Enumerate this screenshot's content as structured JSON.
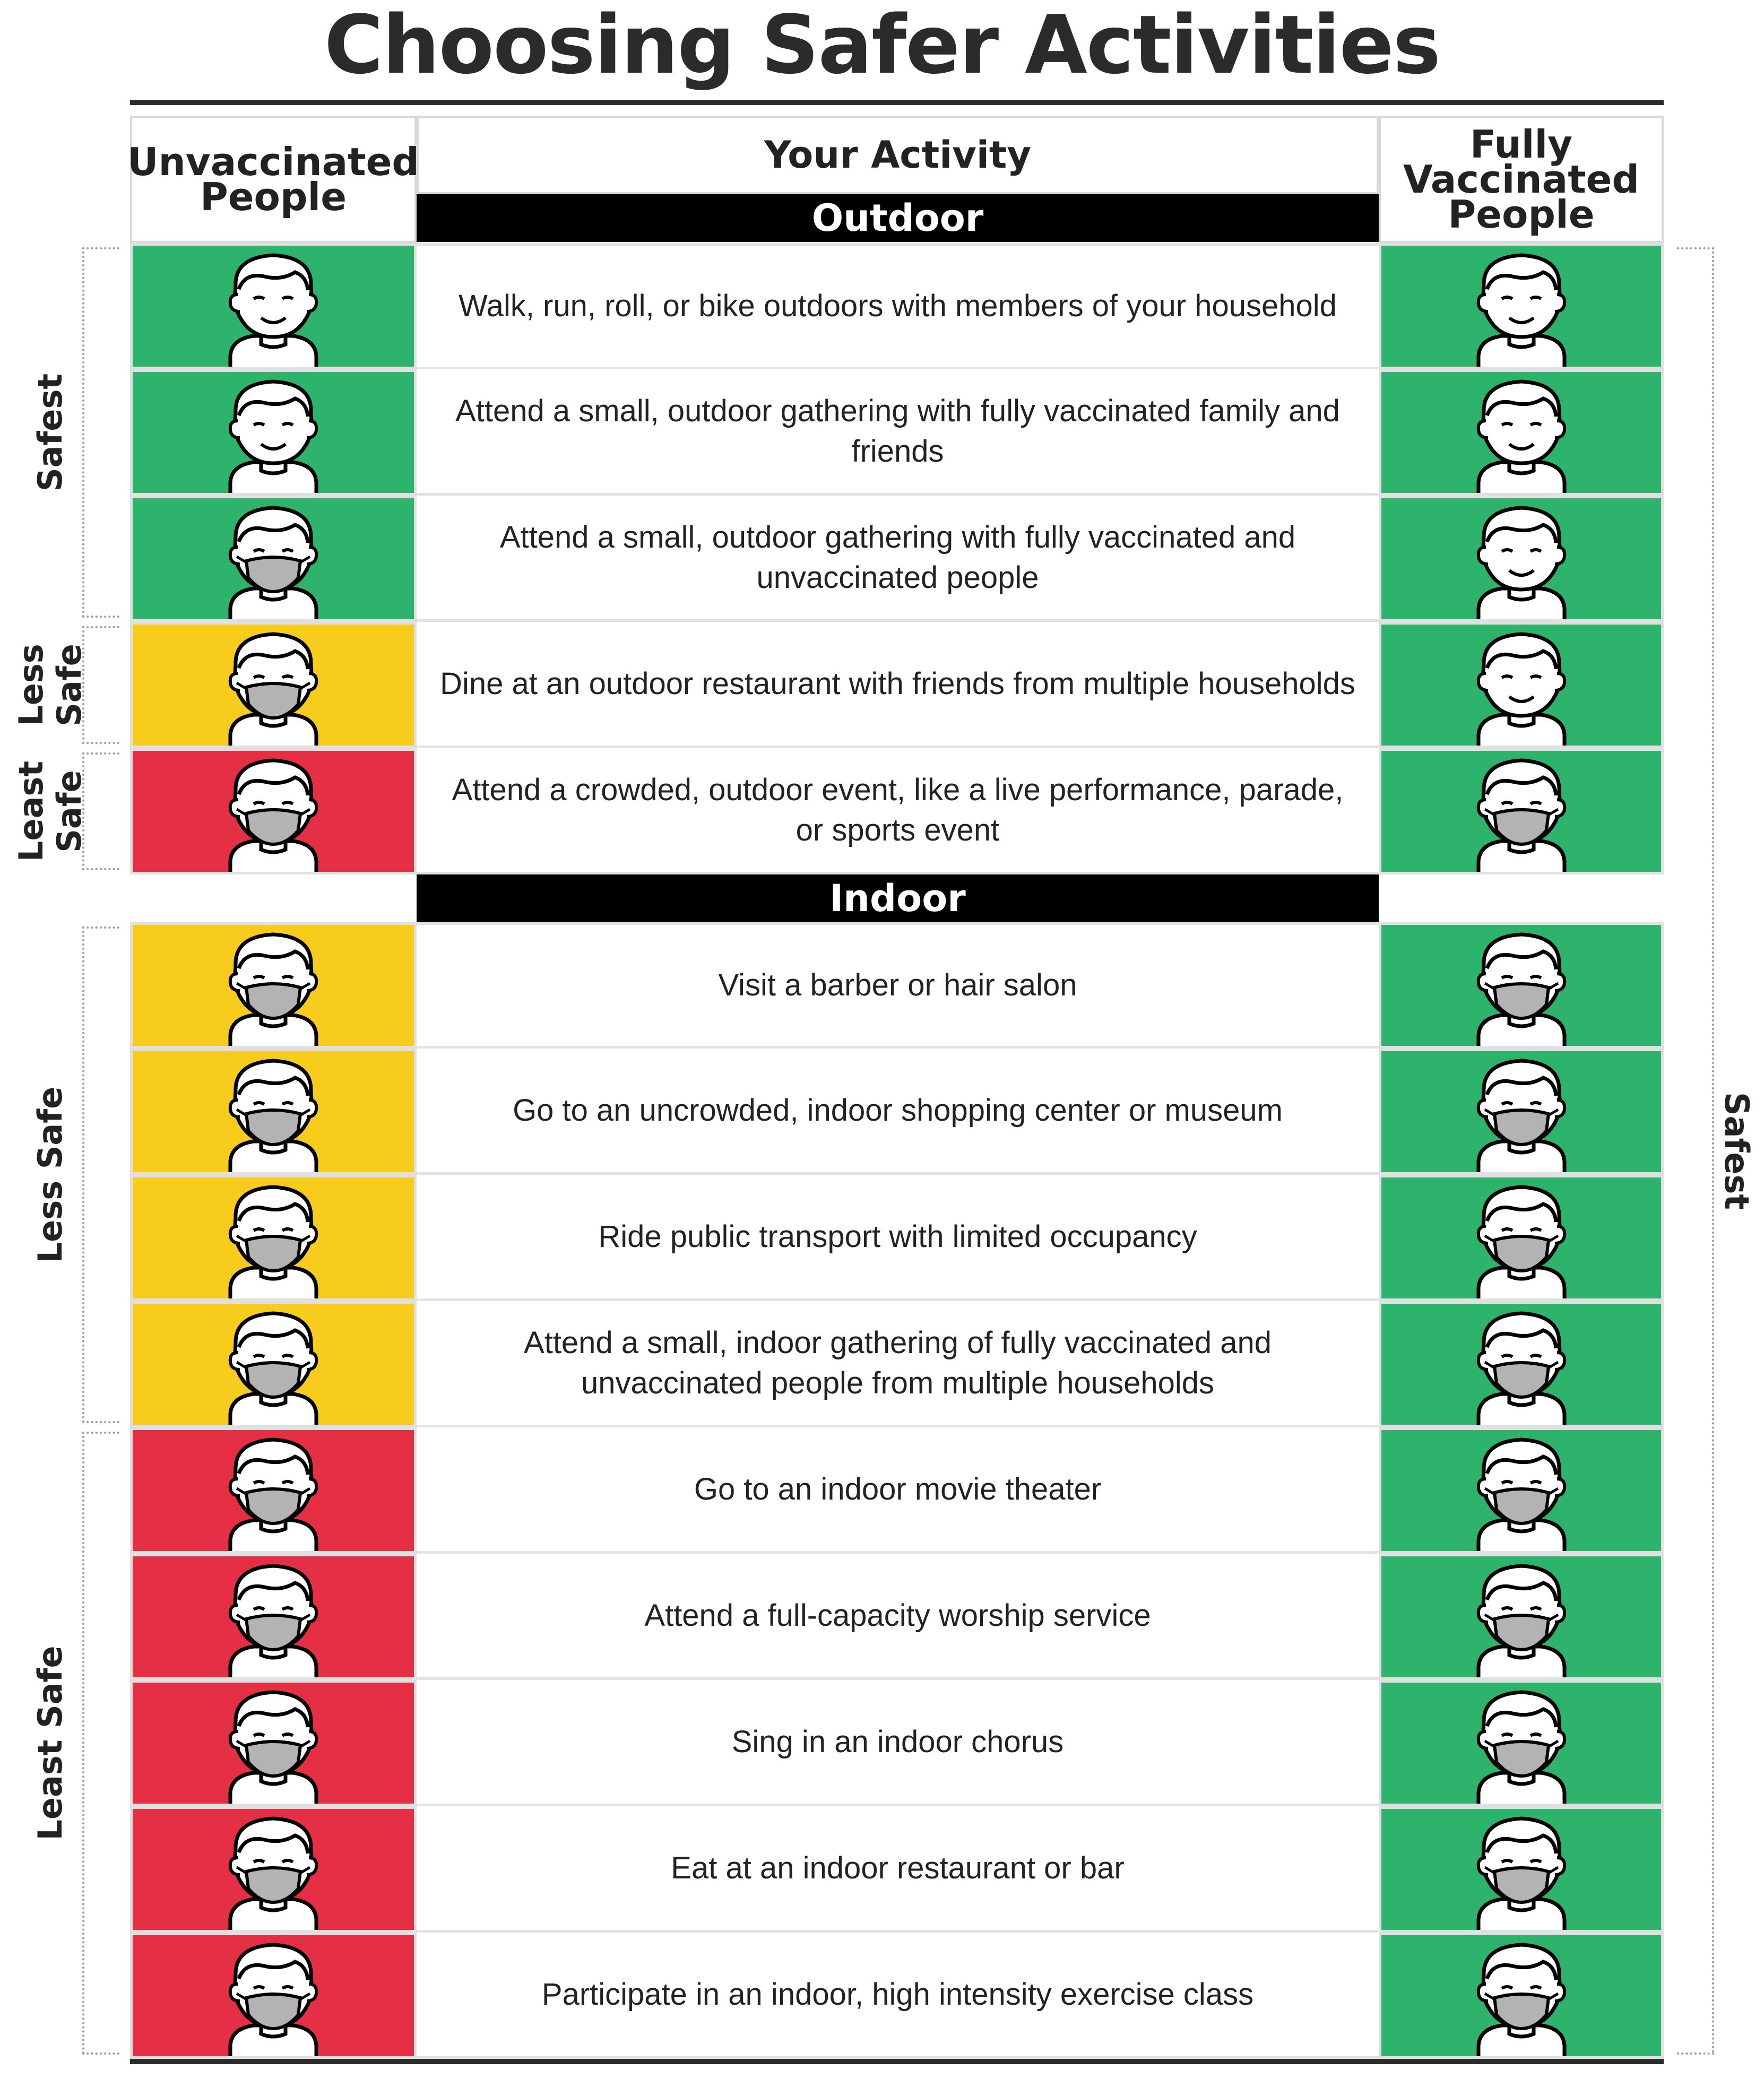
{
  "title": "Choosing Safer Activities",
  "headers": {
    "unvaccinated": "Unvaccinated People",
    "activity": "Your Activity",
    "vaccinated": "Fully Vaccinated People"
  },
  "colors": {
    "green": "#2db36b",
    "yellow": "#f7cc1c",
    "red": "#e52f44",
    "mask": "#b3b3b3"
  },
  "outdoor": {
    "label": "Outdoor",
    "rows": [
      {
        "activity": "Walk, run, roll, or bike outdoors with members of your household",
        "unvaccinated": {
          "color": "green",
          "face": "smiling-face-icon"
        },
        "vaccinated": {
          "color": "green",
          "face": "smiling-face-icon"
        }
      },
      {
        "activity": "Attend a small, outdoor gathering with fully vaccinated family and friends",
        "unvaccinated": {
          "color": "green",
          "face": "smiling-face-icon"
        },
        "vaccinated": {
          "color": "green",
          "face": "smiling-face-icon"
        }
      },
      {
        "activity": "Attend a small, outdoor gathering with fully vaccinated and unvaccinated people",
        "unvaccinated": {
          "color": "green",
          "face": "masked-face-icon"
        },
        "vaccinated": {
          "color": "green",
          "face": "smiling-face-icon"
        }
      },
      {
        "activity": "Dine at an outdoor restaurant with friends from multiple households",
        "unvaccinated": {
          "color": "yellow",
          "face": "masked-face-icon"
        },
        "vaccinated": {
          "color": "green",
          "face": "smiling-face-icon"
        }
      },
      {
        "activity": "Attend a crowded, outdoor event, like a live performance, parade, or sports event",
        "unvaccinated": {
          "color": "red",
          "face": "masked-face-icon"
        },
        "vaccinated": {
          "color": "green",
          "face": "masked-face-icon"
        }
      }
    ]
  },
  "indoor": {
    "label": "Indoor",
    "rows": [
      {
        "activity": "Visit a barber or hair salon",
        "unvaccinated": {
          "color": "yellow",
          "face": "masked-face-icon"
        },
        "vaccinated": {
          "color": "green",
          "face": "masked-face-icon"
        }
      },
      {
        "activity": "Go to an uncrowded, indoor shopping center or museum",
        "unvaccinated": {
          "color": "yellow",
          "face": "masked-face-icon"
        },
        "vaccinated": {
          "color": "green",
          "face": "masked-face-icon"
        }
      },
      {
        "activity": "Ride public transport with limited occupancy",
        "unvaccinated": {
          "color": "yellow",
          "face": "masked-face-icon"
        },
        "vaccinated": {
          "color": "green",
          "face": "masked-face-icon"
        }
      },
      {
        "activity": "Attend a small, indoor gathering of fully vaccinated and unvaccinated people from multiple households",
        "unvaccinated": {
          "color": "yellow",
          "face": "masked-face-icon"
        },
        "vaccinated": {
          "color": "green",
          "face": "masked-face-icon"
        }
      },
      {
        "activity": "Go to an indoor movie theater",
        "unvaccinated": {
          "color": "red",
          "face": "masked-face-icon"
        },
        "vaccinated": {
          "color": "green",
          "face": "masked-face-icon"
        }
      },
      {
        "activity": "Attend a full-capacity worship service",
        "unvaccinated": {
          "color": "red",
          "face": "masked-face-icon"
        },
        "vaccinated": {
          "color": "green",
          "face": "masked-face-icon"
        }
      },
      {
        "activity": "Sing in an indoor chorus",
        "unvaccinated": {
          "color": "red",
          "face": "masked-face-icon"
        },
        "vaccinated": {
          "color": "green",
          "face": "masked-face-icon"
        }
      },
      {
        "activity": "Eat at an indoor restaurant or bar",
        "unvaccinated": {
          "color": "red",
          "face": "masked-face-icon"
        },
        "vaccinated": {
          "color": "green",
          "face": "masked-face-icon"
        }
      },
      {
        "activity": "Participate in an indoor, high intensity exercise class",
        "unvaccinated": {
          "color": "red",
          "face": "masked-face-icon"
        },
        "vaccinated": {
          "color": "green",
          "face": "masked-face-icon"
        }
      }
    ]
  },
  "side_labels": {
    "left": [
      {
        "text": "Safest",
        "rows": "outdoor 1-3"
      },
      {
        "text": "Less Safe",
        "rows": "outdoor 4"
      },
      {
        "text": "Least Safe",
        "rows": "outdoor 5"
      },
      {
        "text": "Less Safe",
        "rows": "indoor 1-4"
      },
      {
        "text": "Least Safe",
        "rows": "indoor 5-9"
      }
    ],
    "right": [
      {
        "text": "Safest",
        "rows": "all"
      }
    ]
  }
}
